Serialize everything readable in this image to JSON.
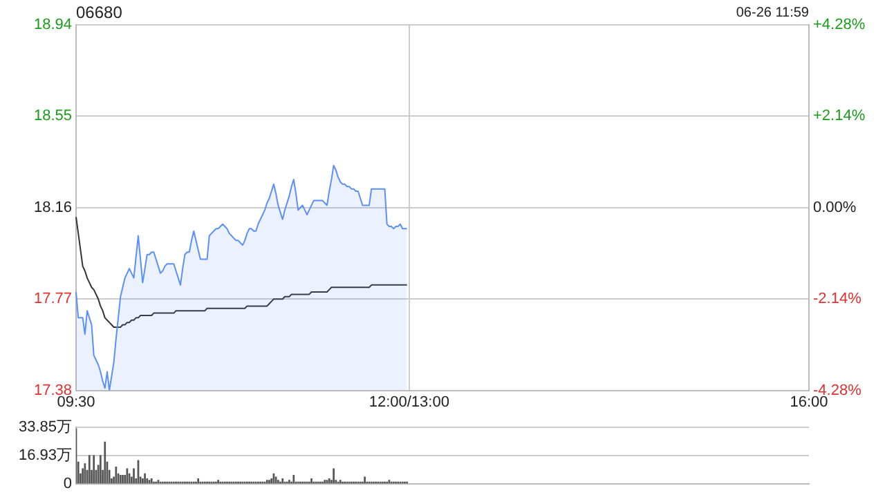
{
  "chart_data": [
    {
      "type": "line",
      "title": "06680",
      "annotations": [
        "06-26 11:59"
      ],
      "marker": "none",
      "grid": true,
      "categories": [
        "09:30",
        null,
        null,
        null,
        null,
        null,
        null,
        null,
        null,
        null,
        null,
        null,
        null,
        null,
        null,
        null,
        null,
        null,
        null,
        null,
        null,
        null,
        null,
        null,
        null,
        null,
        null,
        null,
        null,
        null,
        null,
        null,
        null,
        null,
        null,
        null,
        null,
        null,
        null,
        null,
        null,
        null,
        null,
        null,
        null,
        null,
        null,
        null,
        null,
        null,
        null,
        null,
        null,
        null,
        null,
        null,
        null,
        null,
        null,
        null,
        null,
        null,
        null,
        null,
        null,
        null,
        null,
        null,
        null,
        null,
        null,
        null,
        null,
        null,
        null,
        null,
        null,
        null,
        null,
        null,
        null,
        null,
        null,
        null,
        null,
        null,
        null,
        null,
        null,
        null,
        null,
        null,
        null,
        null,
        null,
        null,
        null,
        null,
        null,
        null,
        null,
        null,
        null,
        null,
        null,
        null,
        null,
        null,
        null,
        null,
        null,
        null,
        null,
        null,
        null,
        null,
        null,
        null,
        null,
        null,
        null,
        null,
        null,
        null,
        null,
        null,
        null,
        null,
        null,
        null,
        null,
        null,
        null,
        null,
        null,
        null,
        null,
        null,
        null,
        null,
        null,
        null,
        null,
        null,
        null,
        null,
        null,
        null,
        null,
        null,
        "12:00/13:00",
        null,
        null,
        null,
        null,
        null,
        null,
        null,
        null,
        null,
        null,
        null,
        null,
        null,
        null,
        null,
        null,
        null,
        null,
        null,
        null,
        null,
        null,
        null,
        null,
        null,
        null,
        null,
        null,
        null,
        null,
        null,
        null,
        null,
        null,
        null,
        null,
        null,
        null,
        null,
        null,
        null,
        null,
        null,
        null,
        null,
        null,
        null,
        null,
        null,
        null,
        null,
        null,
        null,
        null,
        null,
        null,
        null,
        null,
        null,
        null,
        null,
        null,
        null,
        null,
        null,
        null,
        null,
        null,
        null,
        null,
        null,
        null,
        null,
        null,
        null,
        null,
        null,
        null,
        null,
        null,
        null,
        null,
        null,
        null,
        null,
        null,
        null,
        null,
        null,
        null,
        null,
        null,
        null,
        null,
        null,
        null,
        null,
        null,
        null,
        null,
        null,
        null,
        null,
        null,
        null,
        null,
        null,
        null,
        null,
        null,
        null,
        null,
        null,
        null,
        null,
        null,
        null,
        null,
        null,
        null,
        null,
        null,
        null,
        null,
        null,
        null,
        null,
        null,
        null,
        null,
        null,
        null,
        null,
        null,
        null,
        null,
        null,
        null,
        null,
        null,
        null,
        null,
        null,
        null,
        null,
        null,
        null,
        null,
        null,
        null,
        null,
        null,
        null,
        null,
        null,
        null,
        null,
        null,
        null,
        null,
        null,
        null,
        null,
        null,
        null,
        null,
        null,
        null,
        null,
        null,
        null,
        null,
        null,
        null,
        null,
        null,
        null,
        null,
        null,
        "16:00"
      ],
      "series": [
        {
          "type": "area",
          "color": "#5b8ff9",
          "values": [
            17.8,
            17.69,
            17.69,
            17.69,
            17.62,
            17.72,
            17.69,
            17.66,
            17.53,
            17.51,
            17.49,
            17.46,
            17.42,
            17.39,
            17.46,
            17.38,
            17.44,
            17.5,
            17.6,
            17.69,
            17.78,
            17.82,
            17.86,
            17.88,
            17.9,
            17.88,
            17.86,
            17.95,
            18.04,
            17.94,
            17.84,
            17.9,
            17.96,
            17.96,
            17.97,
            17.97,
            17.94,
            17.91,
            17.88,
            17.89,
            17.91,
            17.92,
            17.92,
            17.92,
            17.92,
            17.89,
            17.86,
            17.83,
            17.9,
            17.96,
            17.97,
            17.97,
            18.02,
            18.06,
            18.02,
            17.98,
            17.94,
            17.94,
            17.94,
            17.94,
            18.04,
            18.05,
            18.06,
            18.07,
            18.07,
            18.08,
            18.09,
            18.08,
            18.07,
            18.05,
            18.04,
            18.03,
            18.02,
            18.02,
            18.01,
            18.0,
            18.02,
            18.05,
            18.07,
            18.07,
            18.06,
            18.06,
            18.09,
            18.11,
            18.13,
            18.15,
            18.18,
            18.2,
            18.23,
            18.26,
            18.22,
            18.17,
            18.14,
            18.11,
            18.15,
            18.18,
            18.21,
            18.25,
            18.28,
            18.22,
            18.15,
            18.16,
            18.17,
            18.15,
            18.13,
            18.15,
            18.17,
            18.19,
            18.19,
            18.19,
            18.19,
            18.19,
            18.18,
            18.17,
            18.23,
            18.28,
            18.34,
            18.32,
            18.29,
            18.27,
            18.26,
            18.26,
            18.25,
            18.25,
            18.24,
            18.24,
            18.23,
            18.23,
            18.2,
            18.17,
            18.17,
            18.17,
            18.17,
            18.24,
            18.24,
            18.24,
            18.24,
            18.24,
            18.24,
            18.24,
            18.09,
            18.08,
            18.08,
            18.07,
            18.08,
            18.08,
            18.09,
            18.07,
            18.07,
            18.07,
            null,
            null,
            null,
            null,
            null,
            null,
            null,
            null,
            null,
            null,
            null,
            null,
            null,
            null,
            null,
            null,
            null,
            null,
            null,
            null,
            null,
            null,
            null,
            null,
            null,
            null,
            null,
            null,
            null,
            null,
            null,
            null,
            null,
            null,
            null,
            null,
            null,
            null,
            null,
            null,
            null,
            null,
            null,
            null,
            null,
            null,
            null,
            null,
            null,
            null,
            null,
            null,
            null,
            null,
            null,
            null,
            null,
            null,
            null,
            null,
            null,
            null,
            null,
            null,
            null,
            null,
            null,
            null,
            null,
            null,
            null,
            null,
            null,
            null,
            null,
            null,
            null,
            null,
            null,
            null,
            null,
            null,
            null,
            null,
            null,
            null,
            null,
            null,
            null,
            null,
            null,
            null,
            null,
            null,
            null,
            null,
            null,
            null,
            null,
            null,
            null,
            null,
            null,
            null,
            null,
            null,
            null,
            null,
            null,
            null,
            null,
            null,
            null,
            null,
            null,
            null,
            null,
            null,
            null,
            null,
            null,
            null,
            null,
            null,
            null,
            null,
            null,
            null,
            null,
            null,
            null,
            null,
            null,
            null,
            null,
            null,
            null,
            null,
            null,
            null,
            null,
            null,
            null,
            null,
            null,
            null,
            null,
            null,
            null,
            null,
            null,
            null,
            null,
            null,
            null,
            null,
            null,
            null,
            null,
            null,
            null,
            null,
            null,
            null,
            null,
            null,
            null,
            null,
            null,
            null,
            null,
            null,
            null,
            null,
            null,
            null,
            null,
            null,
            null,
            null,
            null
          ]
        },
        {
          "type": "line",
          "color": "#333333",
          "values": [
            18.12,
            18.05,
            17.98,
            17.91,
            17.89,
            17.86,
            17.84,
            17.82,
            17.81,
            17.79,
            17.77,
            17.74,
            17.72,
            17.69,
            17.68,
            17.67,
            17.66,
            17.65,
            17.65,
            17.65,
            17.65,
            17.66,
            17.66,
            17.67,
            17.67,
            17.68,
            17.68,
            17.69,
            17.69,
            17.7,
            17.7,
            17.7,
            17.7,
            17.7,
            17.7,
            17.71,
            17.71,
            17.71,
            17.71,
            17.71,
            17.71,
            17.71,
            17.71,
            17.71,
            17.71,
            17.72,
            17.72,
            17.72,
            17.72,
            17.72,
            17.72,
            17.72,
            17.72,
            17.72,
            17.72,
            17.72,
            17.72,
            17.72,
            17.72,
            17.73,
            17.73,
            17.73,
            17.73,
            17.73,
            17.73,
            17.73,
            17.73,
            17.73,
            17.73,
            17.73,
            17.73,
            17.73,
            17.73,
            17.73,
            17.73,
            17.73,
            17.73,
            17.74,
            17.74,
            17.74,
            17.74,
            17.74,
            17.74,
            17.74,
            17.74,
            17.74,
            17.74,
            17.75,
            17.76,
            17.77,
            17.77,
            17.77,
            17.77,
            17.77,
            17.78,
            17.78,
            17.78,
            17.79,
            17.79,
            17.79,
            17.79,
            17.79,
            17.79,
            17.79,
            17.79,
            17.79,
            17.8,
            17.8,
            17.8,
            17.8,
            17.8,
            17.8,
            17.8,
            17.8,
            17.81,
            17.82,
            17.82,
            17.82,
            17.82,
            17.82,
            17.82,
            17.82,
            17.82,
            17.82,
            17.82,
            17.82,
            17.82,
            17.82,
            17.82,
            17.82,
            17.82,
            17.82,
            17.82,
            17.83,
            17.83,
            17.83,
            17.83,
            17.83,
            17.83,
            17.83,
            17.83,
            17.83,
            17.83,
            17.83,
            17.83,
            17.83,
            17.83,
            17.83,
            17.83,
            17.83,
            null,
            null,
            null,
            null,
            null,
            null,
            null,
            null,
            null,
            null,
            null,
            null,
            null,
            null,
            null,
            null,
            null,
            null,
            null,
            null,
            null,
            null,
            null,
            null,
            null,
            null,
            null,
            null,
            null,
            null,
            null,
            null,
            null,
            null,
            null,
            null,
            null,
            null,
            null,
            null,
            null,
            null,
            null,
            null,
            null,
            null,
            null,
            null,
            null,
            null,
            null,
            null,
            null,
            null,
            null,
            null,
            null,
            null,
            null,
            null,
            null,
            null,
            null,
            null,
            null,
            null,
            null,
            null,
            null,
            null,
            null,
            null,
            null,
            null,
            null,
            null,
            null,
            null,
            null,
            null,
            null,
            null,
            null,
            null,
            null,
            null,
            null,
            null,
            null,
            null,
            null,
            null,
            null,
            null,
            null,
            null,
            null,
            null,
            null,
            null,
            null,
            null,
            null,
            null,
            null,
            null,
            null,
            null,
            null,
            null,
            null,
            null,
            null,
            null,
            null,
            null,
            null,
            null,
            null,
            null,
            null,
            null,
            null,
            null,
            null,
            null,
            null,
            null,
            null,
            null,
            null,
            null,
            null,
            null,
            null,
            null,
            null,
            null,
            null,
            null,
            null,
            null,
            null,
            null,
            null,
            null,
            null,
            null,
            null,
            null,
            null,
            null,
            null,
            null,
            null,
            null,
            null,
            null,
            null,
            null,
            null,
            null,
            null,
            null,
            null,
            null,
            null,
            null,
            null,
            null,
            null,
            null,
            null,
            null,
            null,
            null,
            null,
            null,
            null,
            null,
            null
          ]
        }
      ],
      "ylim": [
        17.38,
        18.94
      ],
      "yticks": [
        17.38,
        17.77,
        18.16,
        18.55,
        18.94
      ],
      "y2lim": [
        -4.28,
        4.28
      ],
      "y2ticks": [
        {
          "value": -4.28,
          "label": "-4.28%"
        },
        {
          "value": -2.14,
          "label": "-2.14%"
        },
        {
          "value": 0,
          "label": "0.00%"
        },
        {
          "value": 2.14,
          "label": "+2.14%"
        },
        {
          "value": 4.28,
          "label": "+4.28%"
        }
      ]
    },
    {
      "type": "bar",
      "color": "#555555",
      "grid": "y",
      "tick_labels": "y",
      "categories": [
        null,
        null,
        null,
        null,
        null,
        null,
        null,
        null,
        null,
        null,
        null,
        null,
        null,
        null,
        null,
        null,
        null,
        null,
        null,
        null,
        null,
        null,
        null,
        null,
        null,
        null,
        null,
        null,
        null,
        null,
        null,
        null,
        null,
        null,
        null,
        null,
        null,
        null,
        null,
        null,
        null,
        null,
        null,
        null,
        null,
        null,
        null,
        null,
        null,
        null,
        null,
        null,
        null,
        null,
        null,
        null,
        null,
        null,
        null,
        null,
        null,
        null,
        null,
        null,
        null,
        null,
        null,
        null,
        null,
        null,
        null,
        null,
        null,
        null,
        null,
        null,
        null,
        null,
        null,
        null,
        null,
        null,
        null,
        null,
        null,
        null,
        null,
        null,
        null,
        null,
        null,
        null,
        null,
        null,
        null,
        null,
        null,
        null,
        null,
        null,
        null,
        null,
        null,
        null,
        null,
        null,
        null,
        null,
        null,
        null,
        null,
        null,
        null,
        null,
        null,
        null,
        null,
        null,
        null,
        null,
        null,
        null,
        null,
        null,
        null,
        null,
        null,
        null,
        null,
        null,
        null,
        null,
        null,
        null,
        null,
        null,
        null,
        null,
        null,
        null,
        null,
        null,
        null,
        null,
        null,
        null,
        null,
        null,
        null,
        null,
        null,
        null,
        null,
        null,
        null,
        null,
        null,
        null,
        null,
        null,
        null,
        null,
        null,
        null,
        null,
        null,
        null,
        null,
        null,
        null,
        null,
        null,
        null,
        null,
        null,
        null,
        null,
        null,
        null,
        null,
        null,
        null,
        null,
        null,
        null,
        null,
        null,
        null,
        null,
        null,
        null,
        null,
        null,
        null,
        null,
        null,
        null,
        null,
        null,
        null,
        null,
        null,
        null,
        null,
        null,
        null,
        null,
        null,
        null,
        null,
        null,
        null,
        null,
        null,
        null,
        null,
        null,
        null,
        null,
        null,
        null,
        null,
        null,
        null,
        null,
        null,
        null,
        null,
        null,
        null,
        null,
        null,
        null,
        null,
        null,
        null,
        null,
        null,
        null,
        null,
        null,
        null,
        null,
        null,
        null,
        null,
        null,
        null,
        null,
        null,
        null,
        null,
        null,
        null,
        null,
        null,
        null,
        null,
        null,
        null,
        null,
        null,
        null,
        null,
        null,
        null,
        null,
        null,
        null,
        null,
        null,
        null,
        null,
        null,
        null,
        null,
        null,
        null,
        null,
        null,
        null,
        null,
        null,
        null,
        null,
        null,
        null,
        null,
        null,
        null,
        null,
        null,
        null,
        null,
        null,
        null,
        null,
        null,
        null,
        null,
        null,
        null,
        null,
        null,
        null,
        null,
        null,
        null,
        null,
        null,
        null,
        null,
        null,
        null,
        null,
        null,
        null,
        null,
        null,
        null,
        null,
        null,
        null,
        null,
        null,
        null,
        null,
        null,
        null,
        null,
        null
      ],
      "values": [
        33,
        13,
        6,
        9,
        12,
        8,
        17,
        8,
        17,
        8,
        11,
        17,
        8,
        25,
        13,
        8,
        3,
        4,
        10,
        6,
        5,
        5,
        5,
        9,
        6,
        4,
        9,
        3,
        14,
        4,
        3,
        6,
        3,
        2,
        3,
        1,
        1,
        2,
        1,
        1,
        1,
        1,
        1,
        1,
        1,
        1,
        1,
        1,
        1,
        1,
        1,
        1,
        1,
        1,
        1,
        3,
        1,
        1,
        1,
        1,
        1,
        1,
        1,
        1,
        2,
        1,
        1,
        1,
        1,
        1,
        1,
        1,
        1,
        1,
        1,
        1,
        1,
        1,
        1,
        1,
        1,
        1,
        1,
        1,
        1,
        1,
        2,
        2,
        3,
        6,
        4,
        2,
        1,
        3,
        1,
        1,
        2,
        1,
        5,
        1,
        1,
        1,
        1,
        1,
        1,
        1,
        3,
        1,
        1,
        1,
        1,
        1,
        2,
        2,
        3,
        2,
        9,
        2,
        1,
        2,
        1,
        1,
        1,
        1,
        1,
        1,
        1,
        1,
        1,
        1,
        4,
        1,
        1,
        1,
        1,
        1,
        1,
        1,
        1,
        1,
        1,
        2,
        1,
        1,
        1,
        1,
        1,
        1,
        1,
        1,
        null,
        null,
        null,
        null,
        null,
        null,
        null,
        null,
        null,
        null,
        null,
        null,
        null,
        null,
        null,
        null,
        null,
        null,
        null,
        null,
        null,
        null,
        null,
        null,
        null,
        null,
        null,
        null,
        null,
        null,
        null,
        null,
        null,
        null,
        null,
        null,
        null,
        null,
        null,
        null,
        null,
        null,
        null,
        null,
        null,
        null,
        null,
        null,
        null,
        null,
        null,
        null,
        null,
        null,
        null,
        null,
        null,
        null,
        null,
        null,
        null,
        null,
        null,
        null,
        null,
        null,
        null,
        null,
        null,
        null,
        null,
        null,
        null,
        null,
        null,
        null,
        null,
        null,
        null,
        null,
        null,
        null,
        null,
        null,
        null,
        null,
        null,
        null,
        null,
        null,
        null,
        null,
        null,
        null,
        null,
        null,
        null,
        null,
        null,
        null,
        null,
        null,
        null,
        null,
        null,
        null,
        null,
        null,
        null,
        null,
        null,
        null,
        null,
        null,
        null,
        null,
        null,
        null,
        null,
        null,
        null,
        null,
        null,
        null,
        null,
        null,
        null,
        null,
        null,
        null,
        null,
        null,
        null,
        null,
        null,
        null,
        null,
        null,
        null,
        null,
        null,
        null,
        null,
        null,
        null,
        null,
        null,
        null,
        null,
        null,
        null,
        null,
        null,
        null,
        null,
        null,
        null,
        null,
        null,
        null,
        null,
        null,
        null,
        null,
        null,
        null,
        null,
        null,
        null,
        null,
        null,
        null,
        null,
        null,
        null,
        null,
        null,
        null,
        null,
        null,
        null
      ],
      "ylim": [
        0,
        33.85
      ],
      "yticks": [
        0,
        {
          "value": 16.93,
          "label": "16.93万"
        },
        {
          "value": 33.85,
          "label": "33.85万"
        }
      ]
    }
  ]
}
